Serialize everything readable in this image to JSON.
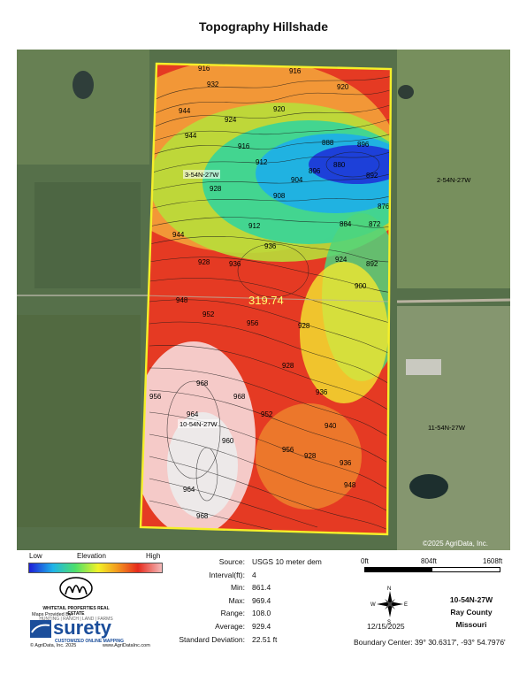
{
  "title": "Topography Hillshade",
  "map": {
    "center_label": "319.74",
    "section_labels": [
      "3-54N-27W",
      "2-54N-27W",
      "10-54N-27W",
      "11-54N-27W"
    ],
    "contour_labels": [
      "916",
      "920",
      "932",
      "924",
      "944",
      "948",
      "952",
      "956",
      "960",
      "964",
      "968",
      "928",
      "936",
      "940",
      "912",
      "908",
      "904",
      "900",
      "896",
      "888",
      "880",
      "892",
      "884",
      "876",
      "872"
    ],
    "copyright": "©2025 AgriData, Inc."
  },
  "legend": {
    "low": "Low",
    "mid": "Elevation",
    "high": "High"
  },
  "stats": [
    {
      "label": "Source:",
      "value": "USGS 10 meter dem"
    },
    {
      "label": "Interval(ft):",
      "value": "4"
    },
    {
      "label": "Min:",
      "value": "861.4"
    },
    {
      "label": "Max:",
      "value": "969.4"
    },
    {
      "label": "Range:",
      "value": "108.0"
    },
    {
      "label": "Average:",
      "value": "929.4"
    },
    {
      "label": "Standard Deviation:",
      "value": "22.51 ft"
    }
  ],
  "scale": {
    "l0": "0ft",
    "l1": "804ft",
    "l2": "1608ft"
  },
  "compass": {
    "n": "N",
    "s": "S",
    "e": "E",
    "w": "W"
  },
  "date": "12/15/2025",
  "location": {
    "section": "10-54N-27W",
    "county": "Ray County",
    "state": "Missouri"
  },
  "boundary_center": "Boundary Center: 39° 30.6317', -93° 54.7976'",
  "logos": {
    "whitetail": "WHITETAIL PROPERTIES REAL ESTATE",
    "whitetail_sub": "HUNTING | RANCH | LAND | FARMS",
    "maps_provided": "Maps Provided By:",
    "surety": "surety",
    "surety_sub": "CUSTOMIZED ONLINE MAPPING",
    "agridata_left": "© AgriData, Inc. 2025",
    "agridata_right": "www.AgriDataInc.com"
  }
}
